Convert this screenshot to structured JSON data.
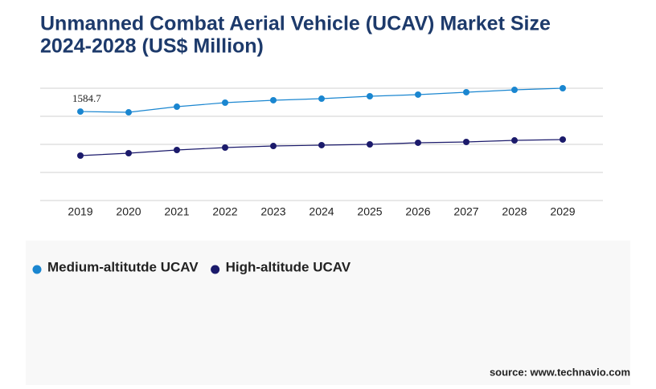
{
  "chart_data": {
    "type": "line",
    "title": "Unmanned Combat Aerial Vehicle (UCAV) Market Size",
    "subtitle": "2024-2028 (US$ Million)",
    "categories": [
      "2019",
      "2020",
      "2021",
      "2022",
      "2023",
      "2024",
      "2025",
      "2026",
      "2027",
      "2028",
      "2029"
    ],
    "series": [
      {
        "name": "Medium-altitutde UCAV",
        "color": "#1a86d0",
        "values": [
          1584.7,
          1571,
          1671,
          1743,
          1786,
          1814,
          1857,
          1886,
          1929,
          1971,
          2000
        ]
      },
      {
        "name": "High-altitude UCAV",
        "color": "#1b1a6b",
        "values": [
          800,
          843,
          900,
          943,
          971,
          986,
          1000,
          1029,
          1043,
          1071,
          1086
        ]
      }
    ],
    "ylim": [
      0,
      2000
    ],
    "yticks": [
      0,
      500,
      1000,
      1500,
      2000
    ],
    "grid": true,
    "source": "source: www.technavio.com"
  }
}
